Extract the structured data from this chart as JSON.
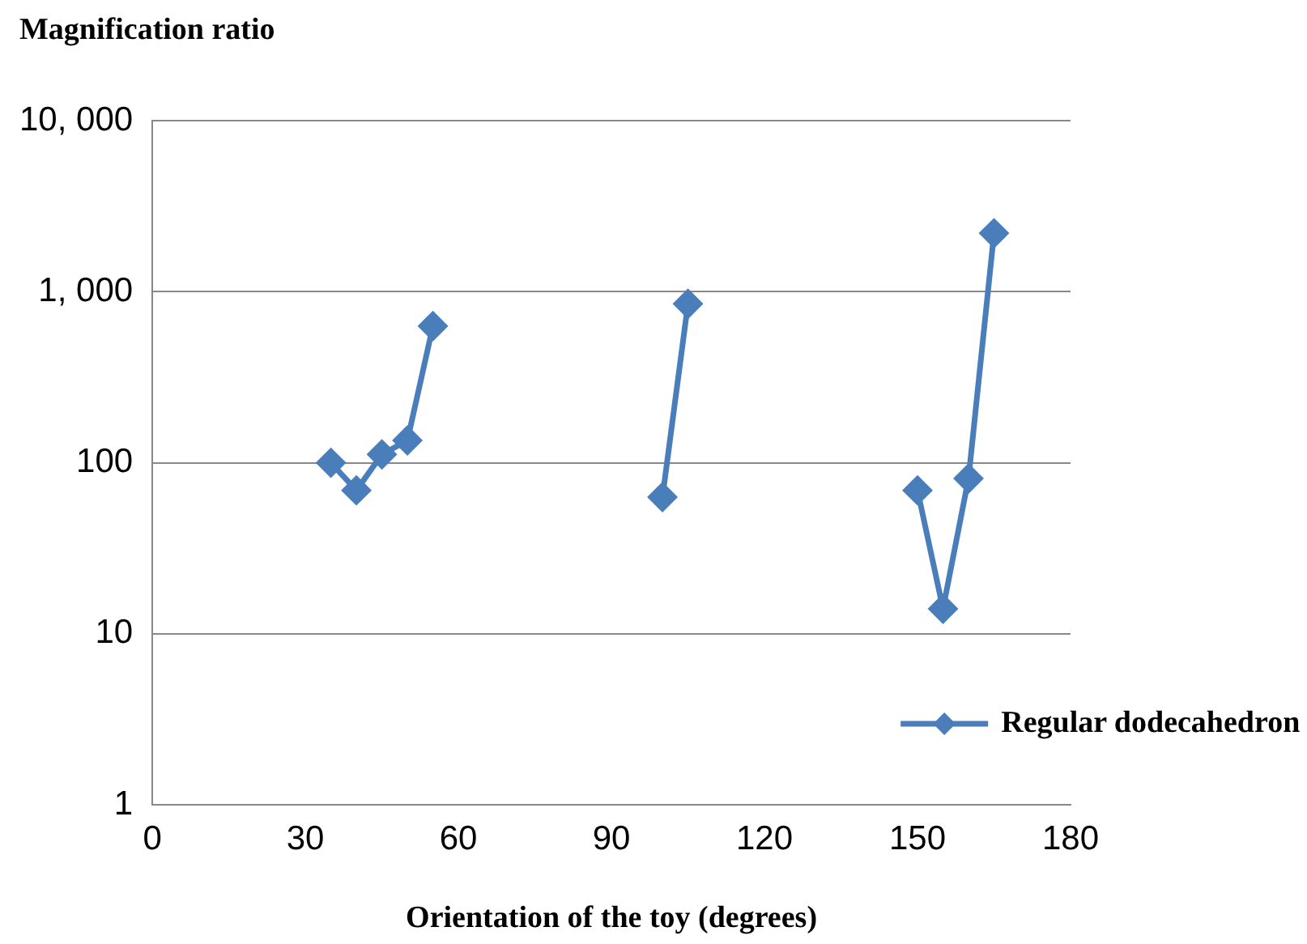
{
  "chart_data": {
    "type": "line",
    "ylabel": "Magnification ratio",
    "xlabel": "Orientation of the toy (degrees)",
    "x": [
      35,
      40,
      45,
      50,
      55,
      80,
      100,
      105,
      130,
      150,
      155,
      160,
      165
    ],
    "series": [
      {
        "name": "Regular dodecahedron",
        "color": "#4a7ebb",
        "values": [
          100,
          69,
          112,
          135,
          630,
          null,
          63,
          850,
          null,
          69,
          14,
          81,
          2200
        ]
      }
    ],
    "xlim": [
      0,
      180
    ],
    "xticks": [
      0,
      30,
      60,
      90,
      120,
      150,
      180
    ],
    "ylim": [
      1,
      10000
    ],
    "yticks": [
      1,
      10,
      100,
      {
        "value": 1000,
        "label": "1, 000"
      },
      {
        "value": 10000,
        "label": "10, 000"
      }
    ],
    "log": "y",
    "grid": "y",
    "legend": "bottom right",
    "marker": "diamond",
    "line_style": "solid"
  }
}
